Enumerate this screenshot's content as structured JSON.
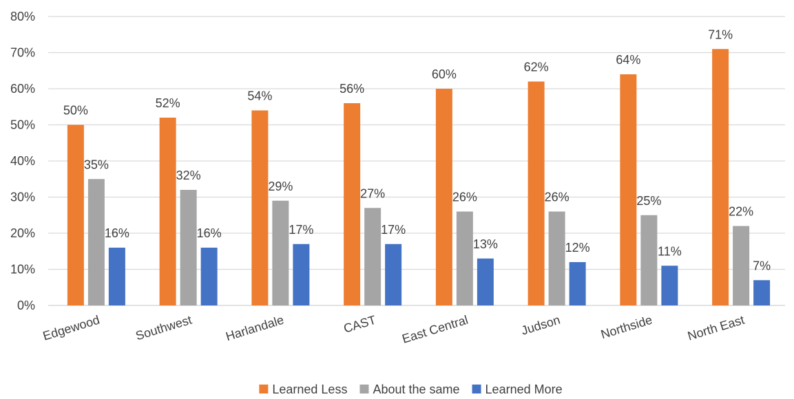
{
  "chart_data": {
    "type": "bar",
    "categories": [
      "Edgewood",
      "Southwest",
      "Harlandale",
      "CAST",
      "East Central",
      "Judson",
      "Northside",
      "North East"
    ],
    "series": [
      {
        "name": "Learned Less",
        "color": "#ED7D31",
        "values": [
          50,
          52,
          54,
          56,
          60,
          62,
          64,
          71
        ],
        "labels": [
          "50%",
          "52%",
          "54%",
          "56%",
          "60%",
          "62%",
          "64%",
          "71%"
        ]
      },
      {
        "name": "About the same",
        "color": "#A5A5A5",
        "values": [
          35,
          32,
          29,
          27,
          26,
          26,
          25,
          22
        ],
        "labels": [
          "35%",
          "32%",
          "29%",
          "27%",
          "26%",
          "26%",
          "25%",
          "22%"
        ]
      },
      {
        "name": "Learned More",
        "color": "#4472C4",
        "values": [
          16,
          16,
          17,
          17,
          13,
          12,
          11,
          7
        ],
        "labels": [
          "16%",
          "16%",
          "17%",
          "17%",
          "13%",
          "12%",
          "11%",
          "7%"
        ]
      }
    ],
    "yticks": [
      "0%",
      "10%",
      "20%",
      "30%",
      "40%",
      "50%",
      "60%",
      "70%",
      "80%"
    ],
    "ylim": [
      0,
      80
    ],
    "grid": true,
    "legend": "bottom"
  }
}
